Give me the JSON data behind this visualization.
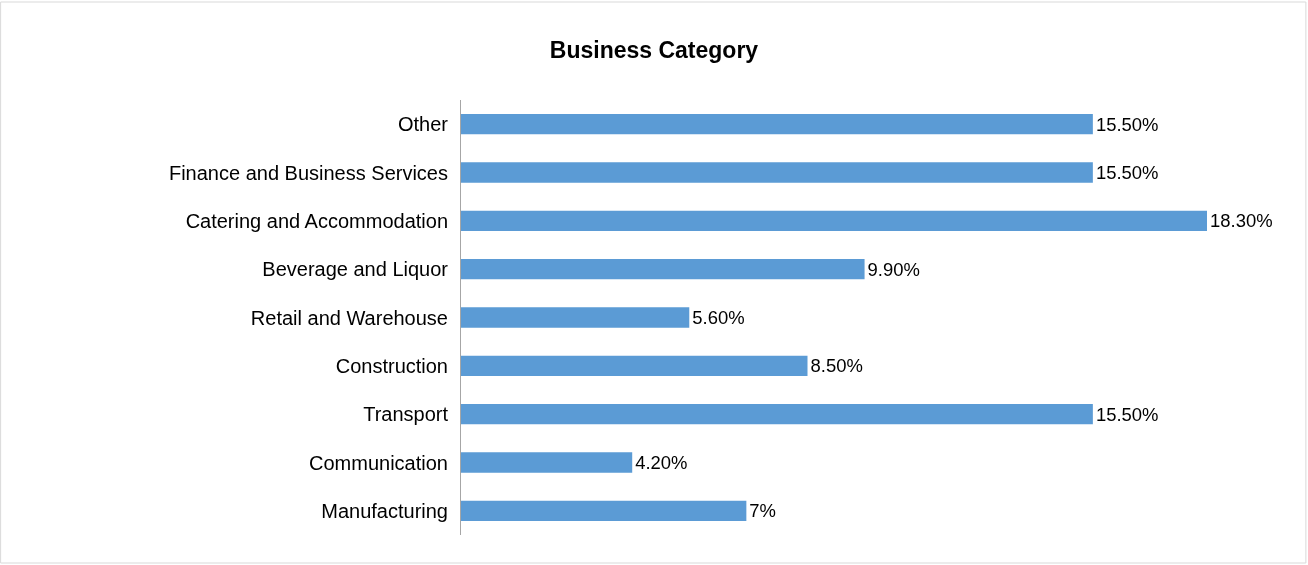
{
  "chart_data": {
    "type": "bar",
    "orientation": "horizontal",
    "title": "Business Category",
    "categories": [
      "Other",
      "Finance and Business Services",
      "Catering and Accommodation",
      "Beverage and Liquor",
      "Retail and Warehouse",
      "Construction",
      "Transport",
      "Communication",
      "Manufacturing"
    ],
    "values": [
      15.5,
      15.5,
      18.3,
      9.9,
      5.6,
      8.5,
      15.5,
      4.2,
      7
    ],
    "value_labels": [
      "15.50%",
      "15.50%",
      "18.30%",
      "9.90%",
      "5.60%",
      "8.50%",
      "15.50%",
      "4.20%",
      "7%"
    ],
    "color": "#5b9bd5",
    "xlim": [
      0,
      18.3
    ]
  }
}
